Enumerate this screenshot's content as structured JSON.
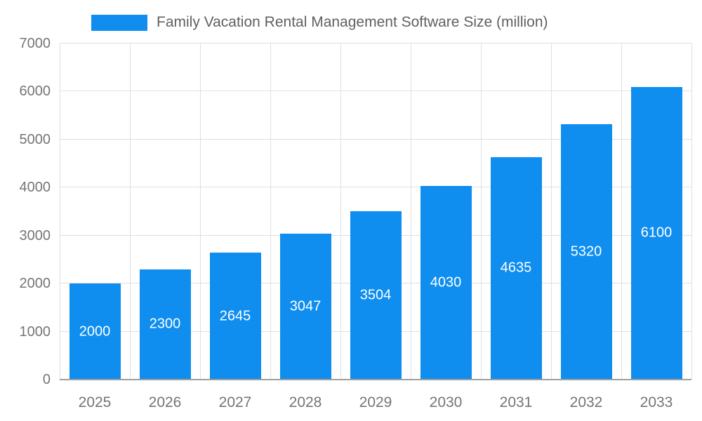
{
  "colors": {
    "bar": "#0f8ef0",
    "grid": "#e0e0e0",
    "axis": "#9e9e9e",
    "title_text": "#616161",
    "tick_text": "#757575",
    "value_text": "#ffffff"
  },
  "legend": {
    "label": "Family Vacation Rental Management Software Size (million)"
  },
  "chart_data": {
    "type": "bar",
    "title": "Family Vacation Rental Management Software Size (million)",
    "categories": [
      "2025",
      "2026",
      "2027",
      "2028",
      "2029",
      "2030",
      "2031",
      "2032",
      "2033"
    ],
    "values": [
      2000,
      2300,
      2645,
      3047,
      3504,
      4030,
      4635,
      5320,
      6100
    ],
    "xlabel": "",
    "ylabel": "",
    "ylim": [
      0,
      7000
    ],
    "yticks": [
      0,
      1000,
      2000,
      3000,
      4000,
      5000,
      6000,
      7000
    ],
    "grid": true,
    "legend_position": "top",
    "value_labels": "inside-center"
  }
}
